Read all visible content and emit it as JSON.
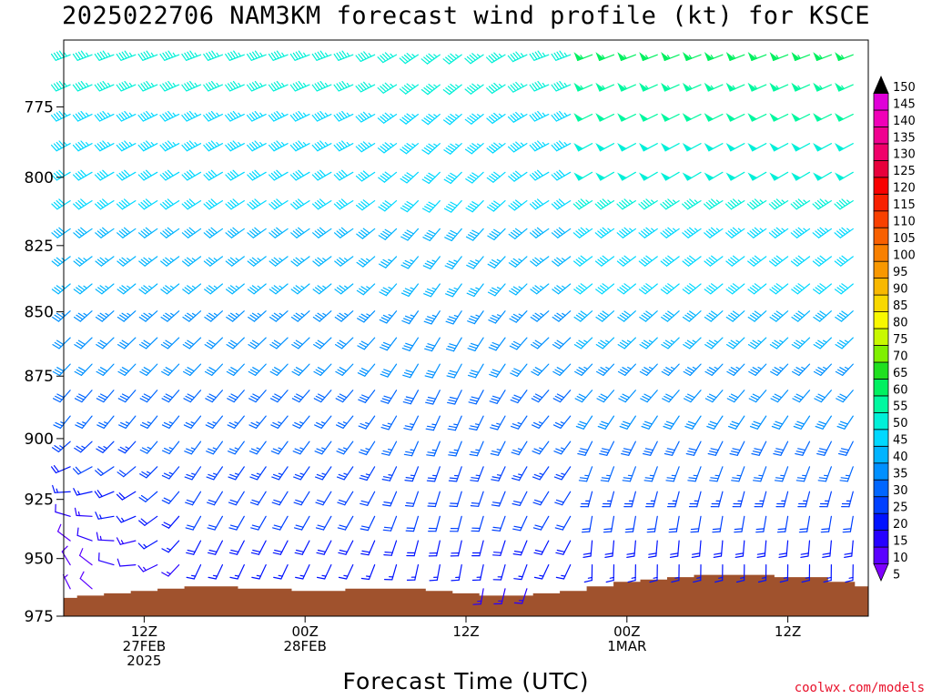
{
  "title": "2025022706 NAM3KM forecast wind profile (kt) for KSCE",
  "credit": "coolwx.com/models",
  "chart_data": {
    "type": "wind_barbs",
    "title": "2025022706 NAM3KM forecast wind profile (kt) for KSCE",
    "xlabel": "Forecast Time (UTC)",
    "ylabel": "",
    "units": "kt",
    "y_axis": {
      "ticks": [
        775,
        800,
        825,
        850,
        875,
        900,
        925,
        950,
        975
      ],
      "range": [
        975,
        752
      ],
      "scale": "log-pressure"
    },
    "x_axis": {
      "range_hours": [
        0,
        60
      ],
      "ticks": [
        {
          "hour": 6,
          "lines": [
            "12Z",
            "27FEB",
            "2025"
          ]
        },
        {
          "hour": 18,
          "lines": [
            "00Z",
            "28FEB"
          ]
        },
        {
          "hour": 30,
          "lines": [
            "12Z"
          ]
        },
        {
          "hour": 42,
          "lines": [
            "00Z",
            "1MAR"
          ]
        },
        {
          "hour": 54,
          "lines": [
            "12Z"
          ]
        }
      ]
    },
    "colorbar": {
      "levels": [
        5,
        10,
        15,
        20,
        25,
        30,
        35,
        40,
        45,
        50,
        55,
        60,
        65,
        70,
        75,
        80,
        85,
        90,
        95,
        100,
        105,
        110,
        115,
        120,
        125,
        130,
        135,
        140,
        145,
        150
      ],
      "colors": [
        "#7f00ff",
        "#5a00ff",
        "#2600ff",
        "#0012ff",
        "#0040ff",
        "#0066ff",
        "#0090ff",
        "#00b4ff",
        "#00d8ff",
        "#00f0d8",
        "#00f8a0",
        "#00f060",
        "#20e020",
        "#80f000",
        "#c8f800",
        "#f8f800",
        "#f8d800",
        "#f8b800",
        "#f89800",
        "#f88000",
        "#f86000",
        "#f84000",
        "#f82000",
        "#f80000",
        "#e8003c",
        "#f0006a",
        "#f00090",
        "#f000b8",
        "#e000d8",
        "#000000"
      ]
    },
    "terrain_surface": {
      "color": "#a0522d",
      "hours": [
        0,
        2,
        4,
        6,
        8,
        10,
        12,
        14,
        16,
        18,
        20,
        22,
        24,
        26,
        28,
        30,
        32,
        34,
        36,
        38,
        40,
        42,
        44,
        46,
        48,
        50,
        52,
        54,
        56,
        58,
        60
      ],
      "pressure": [
        967,
        966,
        965,
        964,
        963,
        962,
        962,
        963,
        963,
        964,
        964,
        963,
        963,
        963,
        964,
        965,
        966,
        966,
        965,
        964,
        962,
        960,
        959,
        958,
        957,
        957,
        957,
        958,
        958,
        960,
        962
      ]
    },
    "wind_regime_notes": [
      "westerly and southwesterly aloft",
      "light northerly near surface early",
      "veering to southerly near surface late"
    ]
  }
}
